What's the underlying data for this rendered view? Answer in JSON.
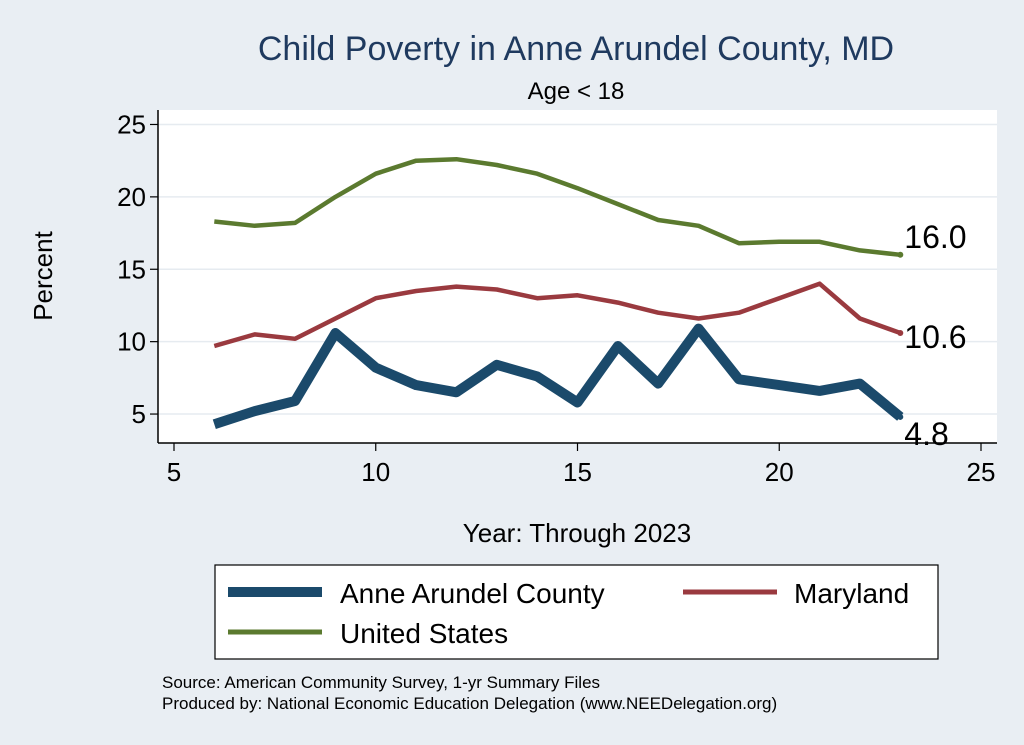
{
  "chart_data": {
    "type": "line",
    "title": "Child Poverty in Anne Arundel County, MD",
    "subtitle": "Age < 18",
    "xlabel": "Year: Through 2023",
    "ylabel": "Percent",
    "xlim": [
      5,
      25
    ],
    "ylim": [
      3,
      26
    ],
    "xticks": [
      5,
      10,
      15,
      20,
      25
    ],
    "yticks": [
      5,
      10,
      15,
      20,
      25
    ],
    "grid": true,
    "legend_position": "bottom",
    "series": [
      {
        "name": "Anne Arundel County",
        "color": "#1b4a6b",
        "x": [
          6,
          7,
          8,
          9,
          10,
          11,
          12,
          13,
          14,
          15,
          16,
          17,
          18,
          19,
          20,
          21,
          22,
          23
        ],
        "values": [
          4.3,
          5.2,
          5.9,
          10.6,
          8.2,
          7.0,
          6.5,
          8.4,
          7.6,
          5.8,
          9.7,
          7.1,
          10.9,
          7.4,
          7.0,
          6.6,
          7.1,
          4.8
        ],
        "end_label": "4.8"
      },
      {
        "name": "Maryland",
        "color": "#9a3a3f",
        "x": [
          6,
          7,
          8,
          9,
          10,
          11,
          12,
          13,
          14,
          15,
          16,
          17,
          18,
          19,
          20,
          21,
          22,
          23
        ],
        "values": [
          9.7,
          10.5,
          10.2,
          11.6,
          13.0,
          13.5,
          13.8,
          13.6,
          13.0,
          13.2,
          12.7,
          12.0,
          11.6,
          12.0,
          13.0,
          14.0,
          11.6,
          10.6
        ],
        "end_label": "10.6"
      },
      {
        "name": "United States",
        "color": "#5b7a2f",
        "x": [
          6,
          7,
          8,
          9,
          10,
          11,
          12,
          13,
          14,
          15,
          16,
          17,
          18,
          19,
          20,
          21,
          22,
          23
        ],
        "values": [
          18.3,
          18.0,
          18.2,
          20.0,
          21.6,
          22.5,
          22.6,
          22.2,
          21.6,
          20.6,
          19.5,
          18.4,
          18.0,
          16.8,
          16.9,
          16.9,
          16.3,
          16.0
        ],
        "end_label": "16.0"
      }
    ]
  },
  "footer": {
    "source": "Source: American Community Survey, 1-yr Summary Files",
    "produced_by": "Produced by: National Economic Education Delegation (www.NEEDelegation.org)"
  }
}
